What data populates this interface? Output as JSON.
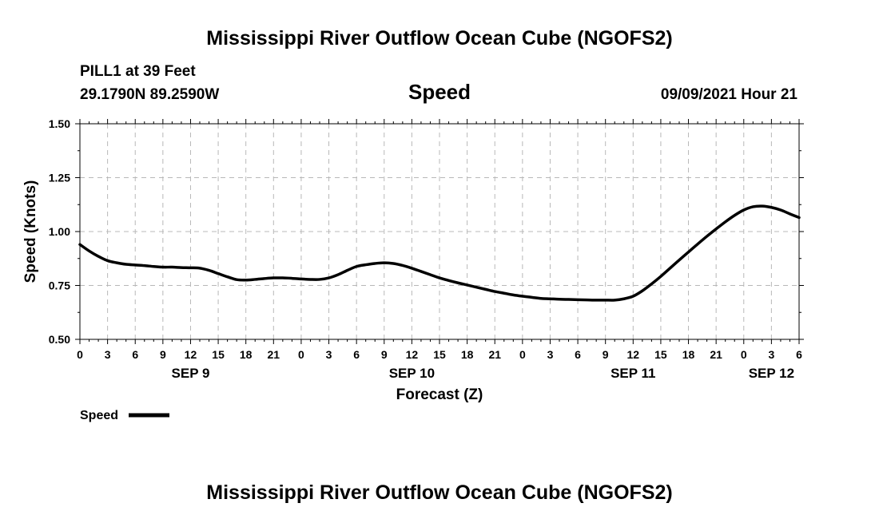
{
  "header": {
    "title": "Mississippi River Outflow Ocean Cube (NGOFS2)",
    "station": "PILL1 at 39 Feet",
    "coords": "29.1790N  89.2590W",
    "parameter": "Speed",
    "timestamp": "09/09/2021 Hour 21"
  },
  "footer": {
    "title": "Mississippi River Outflow Ocean Cube (NGOFS2)"
  },
  "legend": {
    "label": "Speed"
  },
  "chart_data": {
    "type": "line",
    "title": "Speed",
    "xlabel": "Forecast (Z)",
    "ylabel": "Speed (Knots)",
    "ylim": [
      0.5,
      1.5
    ],
    "xlim": [
      0,
      78
    ],
    "x_unit": "hours from 2021-09-09 00Z",
    "grid": true,
    "yticks": [
      "0.50",
      "0.75",
      "1.00",
      "1.25",
      "1.50"
    ],
    "xtick_labels": [
      "0",
      "3",
      "6",
      "9",
      "12",
      "15",
      "18",
      "21",
      "0",
      "3",
      "6",
      "9",
      "12",
      "15",
      "18",
      "21",
      "0",
      "3",
      "6",
      "9",
      "12",
      "15",
      "18",
      "21",
      "0",
      "3",
      "6"
    ],
    "date_labels": [
      {
        "label": "SEP 9",
        "hour": 12
      },
      {
        "label": "SEP 10",
        "hour": 36
      },
      {
        "label": "SEP 11",
        "hour": 60
      },
      {
        "label": "SEP 12",
        "hour": 75
      }
    ],
    "series": [
      {
        "name": "Speed",
        "color": "#000000",
        "x": [
          0,
          1,
          2,
          3,
          4,
          5,
          6,
          7,
          8,
          9,
          10,
          11,
          12,
          13,
          14,
          15,
          16,
          17,
          18,
          19,
          20,
          21,
          22,
          23,
          24,
          25,
          26,
          27,
          28,
          29,
          30,
          31,
          32,
          33,
          34,
          35,
          36,
          37,
          38,
          39,
          40,
          41,
          42,
          43,
          44,
          45,
          46,
          47,
          48,
          49,
          50,
          51,
          52,
          53,
          54,
          55,
          56,
          57,
          58,
          59,
          60,
          61,
          62,
          63,
          64,
          65,
          66,
          67,
          68,
          69,
          70,
          71,
          72,
          73,
          74,
          75,
          76,
          77,
          78
        ],
        "values": [
          0.94,
          0.91,
          0.885,
          0.865,
          0.855,
          0.848,
          0.845,
          0.842,
          0.838,
          0.835,
          0.835,
          0.833,
          0.832,
          0.83,
          0.82,
          0.805,
          0.79,
          0.777,
          0.775,
          0.778,
          0.782,
          0.785,
          0.785,
          0.783,
          0.78,
          0.778,
          0.778,
          0.785,
          0.8,
          0.82,
          0.838,
          0.846,
          0.852,
          0.855,
          0.852,
          0.843,
          0.83,
          0.815,
          0.8,
          0.785,
          0.773,
          0.762,
          0.752,
          0.742,
          0.732,
          0.722,
          0.714,
          0.706,
          0.7,
          0.695,
          0.69,
          0.688,
          0.686,
          0.685,
          0.684,
          0.683,
          0.682,
          0.682,
          0.682,
          0.688,
          0.7,
          0.725,
          0.757,
          0.792,
          0.83,
          0.868,
          0.905,
          0.942,
          0.978,
          1.012,
          1.045,
          1.075,
          1.1,
          1.115,
          1.118,
          1.112,
          1.1,
          1.082,
          1.065
        ]
      }
    ]
  }
}
